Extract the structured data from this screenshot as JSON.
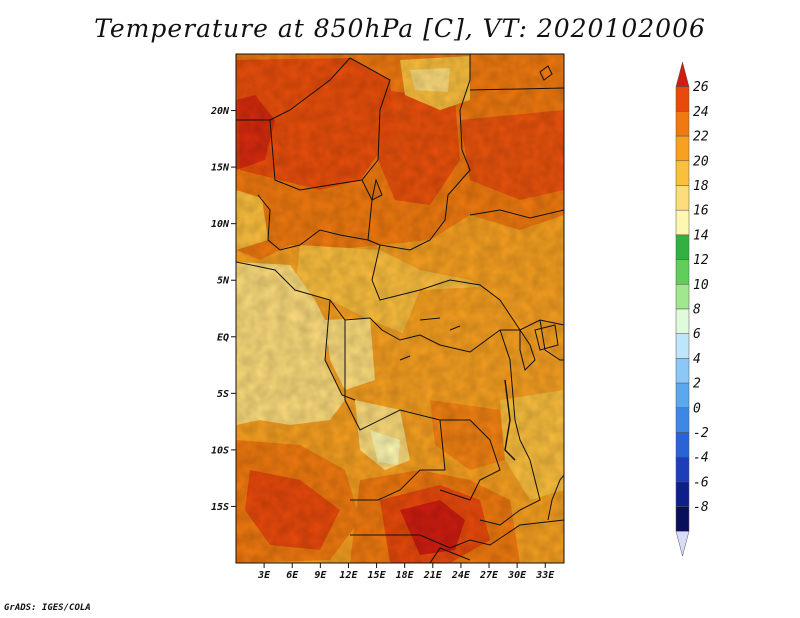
{
  "title": "Temperature at 850hPa [C], VT: 2020102006",
  "credit": "GrADS: IGES/COLA",
  "map": {
    "lon_range": [
      0,
      35
    ],
    "lat_range": [
      -20,
      25
    ],
    "x_ticks": [
      "3E",
      "6E",
      "9E",
      "12E",
      "15E",
      "18E",
      "21E",
      "24E",
      "27E",
      "30E",
      "33E"
    ],
    "y_ticks": [
      "20N",
      "15N",
      "10N",
      "5N",
      "EQ",
      "5S",
      "10S",
      "15S"
    ]
  },
  "colorbar": {
    "labels": [
      "26",
      "24",
      "22",
      "20",
      "18",
      "16",
      "14",
      "12",
      "10",
      "8",
      "6",
      "4",
      "2",
      "0",
      "-2",
      "-4",
      "-6",
      "-8"
    ],
    "colors": [
      "#d01d10",
      "#e94a0c",
      "#f07a10",
      "#f7a021",
      "#fbbf3e",
      "#fcdc7c",
      "#fdf7b1",
      "#32b040",
      "#5fcf5a",
      "#a0e88e",
      "#e0fadc",
      "#bde6fa",
      "#8cc8f5",
      "#5aa8ef",
      "#3d88e5",
      "#2a63d6",
      "#1c3fb7",
      "#0f1f8a",
      "#0a0f5c",
      "#d8dcf5"
    ]
  }
}
